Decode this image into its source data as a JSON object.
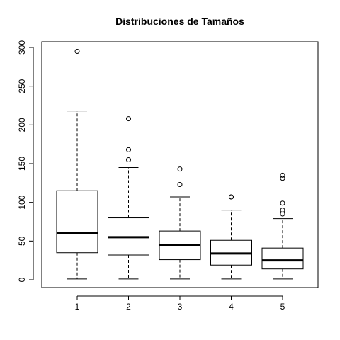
{
  "chart_data": {
    "type": "boxplot",
    "title": "Distribuciones de Tamaños",
    "xlabel": "",
    "ylabel": "",
    "categories": [
      "1",
      "2",
      "3",
      "4",
      "5"
    ],
    "ylim": [
      0,
      300
    ],
    "yticks": [
      0,
      50,
      100,
      150,
      200,
      250,
      300
    ],
    "grid": false,
    "boxes": [
      {
        "label": "1",
        "whisker_low": 1,
        "q1": 35,
        "median": 60,
        "q3": 115,
        "whisker_high": 218,
        "outliers": [
          295
        ]
      },
      {
        "label": "2",
        "whisker_low": 1,
        "q1": 32,
        "median": 55,
        "q3": 80,
        "whisker_high": 145,
        "outliers": [
          155,
          168,
          208
        ]
      },
      {
        "label": "3",
        "whisker_low": 1,
        "q1": 26,
        "median": 45,
        "q3": 63,
        "whisker_high": 107,
        "outliers": [
          123,
          143
        ]
      },
      {
        "label": "4",
        "whisker_low": 1,
        "q1": 19,
        "median": 34,
        "q3": 51,
        "whisker_high": 90,
        "outliers": [
          107,
          107
        ]
      },
      {
        "label": "5",
        "whisker_low": 1,
        "q1": 14,
        "median": 25,
        "q3": 41,
        "whisker_high": 79,
        "outliers": [
          85,
          90,
          99,
          131,
          135
        ]
      }
    ]
  }
}
